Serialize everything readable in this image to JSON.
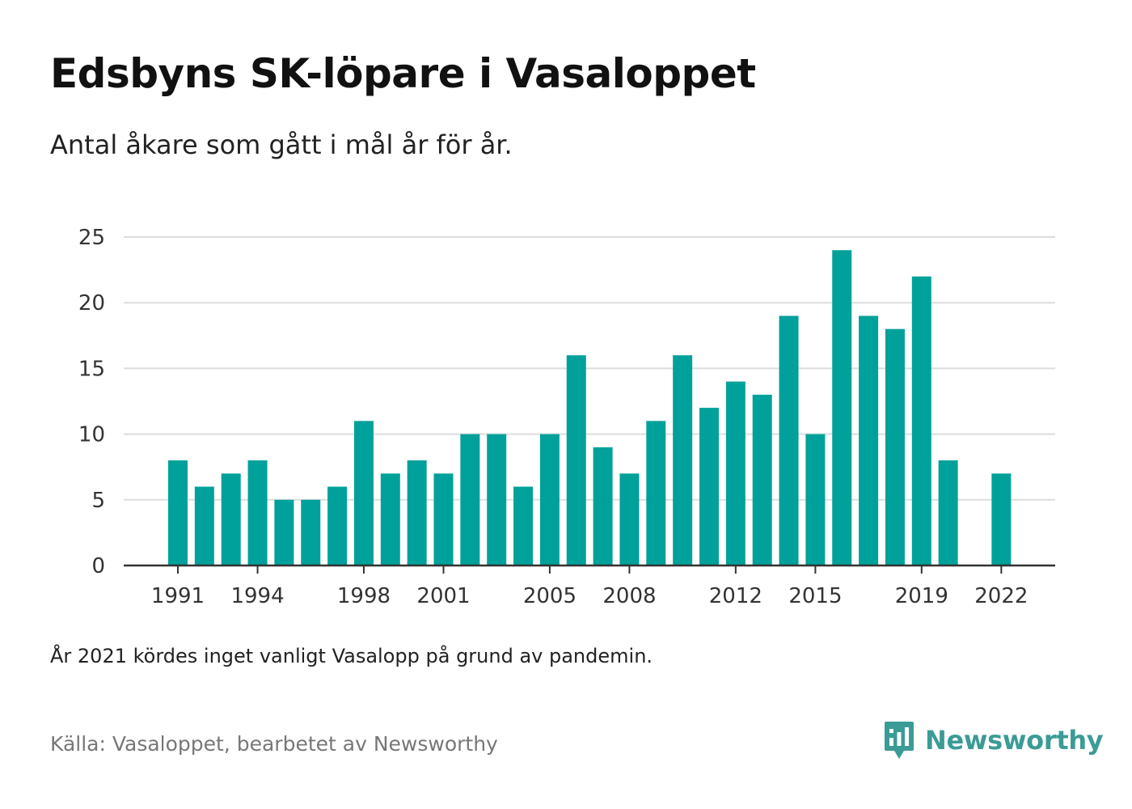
{
  "title": "Edsbyns SK-löpare i Vasaloppet",
  "subtitle": "Antal åkare som gått i mål år för år.",
  "note": "År 2021 kördes inget vanligt Vasalopp på grund av pandemin.",
  "source": "Källa: Vasaloppet, bearbetet av Newsworthy",
  "brand": {
    "name": "Newsworthy",
    "color": "#3b9b96"
  },
  "colors": {
    "bar": "#00a19a",
    "grid": "#dddddd",
    "axis": "#333333"
  },
  "chart_data": {
    "type": "bar",
    "categories": [
      1991,
      1992,
      1993,
      1994,
      1995,
      1996,
      1997,
      1998,
      1999,
      2000,
      2001,
      2002,
      2003,
      2004,
      2005,
      2006,
      2007,
      2008,
      2009,
      2010,
      2011,
      2012,
      2013,
      2014,
      2015,
      2016,
      2017,
      2018,
      2019,
      2020,
      2021,
      2022
    ],
    "values": [
      8,
      6,
      7,
      8,
      5,
      5,
      6,
      11,
      7,
      8,
      7,
      10,
      10,
      6,
      10,
      16,
      9,
      7,
      11,
      16,
      12,
      14,
      13,
      19,
      10,
      24,
      19,
      18,
      22,
      8,
      null,
      7
    ],
    "xticks": [
      "1991",
      "1994",
      "1998",
      "2001",
      "2005",
      "2008",
      "2012",
      "2015",
      "2019",
      "2022"
    ],
    "yticks": [
      "0",
      "5",
      "10",
      "15",
      "20",
      "25"
    ],
    "ylim": [
      0,
      25
    ],
    "grid": true,
    "xlabel": "",
    "ylabel": ""
  }
}
